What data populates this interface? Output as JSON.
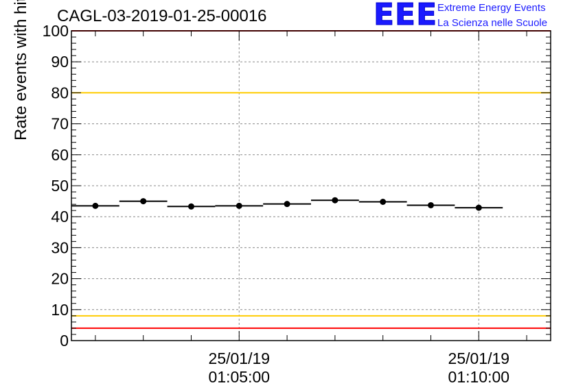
{
  "chart_data": {
    "type": "scatter",
    "title": "CAGL-03-2019-01-25-00016",
    "ylabel": "Rate events with hits [Hz]",
    "xlabel": "",
    "ylim": [
      0,
      100
    ],
    "yticks": [
      0,
      10,
      20,
      30,
      40,
      50,
      60,
      70,
      80,
      90,
      100
    ],
    "xlim_minutes": [
      1.5,
      11.5
    ],
    "xticks": [
      {
        "minute": 5,
        "date": "25/01/19",
        "time": "01:05:00"
      },
      {
        "minute": 10,
        "date": "25/01/19",
        "time": "01:10:00"
      }
    ],
    "grid": true,
    "points": [
      {
        "x_min": 1.5,
        "x_max": 2.5,
        "x": 2.0,
        "y": 43.5
      },
      {
        "x_min": 2.5,
        "x_max": 3.5,
        "x": 3.0,
        "y": 45.0
      },
      {
        "x_min": 3.5,
        "x_max": 4.5,
        "x": 4.0,
        "y": 43.3
      },
      {
        "x_min": 4.5,
        "x_max": 5.5,
        "x": 5.0,
        "y": 43.5
      },
      {
        "x_min": 5.5,
        "x_max": 6.5,
        "x": 6.0,
        "y": 44.1
      },
      {
        "x_min": 6.5,
        "x_max": 7.5,
        "x": 7.0,
        "y": 45.3
      },
      {
        "x_min": 7.5,
        "x_max": 8.5,
        "x": 8.0,
        "y": 44.8
      },
      {
        "x_min": 8.5,
        "x_max": 9.5,
        "x": 9.0,
        "y": 43.7
      },
      {
        "x_min": 9.5,
        "x_max": 10.5,
        "x": 10.0,
        "y": 42.9
      }
    ],
    "reference_lines": [
      {
        "y": 100,
        "color": "#ff0000"
      },
      {
        "y": 80,
        "color": "#ffcc00"
      },
      {
        "y": 8,
        "color": "#ffcc00"
      },
      {
        "y": 4,
        "color": "#ff0000"
      }
    ]
  },
  "logo": {
    "mark": "EEE",
    "line1": "Extreme Energy Events",
    "line2": "La Scienza nelle Scuole"
  },
  "colors": {
    "marker": "#000000",
    "grid": "#888888",
    "logo": "#1a1aff"
  }
}
